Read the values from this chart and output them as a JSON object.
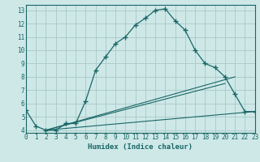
{
  "xlabel": "Humidex (Indice chaleur)",
  "background_color": "#cee8e8",
  "grid_color": "#aecccc",
  "line_color": "#1a6666",
  "xlim": [
    0,
    23
  ],
  "ylim": [
    3.8,
    13.4
  ],
  "xticks": [
    0,
    1,
    2,
    3,
    4,
    5,
    6,
    7,
    8,
    9,
    10,
    11,
    12,
    13,
    14,
    15,
    16,
    17,
    18,
    19,
    20,
    21,
    22,
    23
  ],
  "yticks": [
    4,
    5,
    6,
    7,
    8,
    9,
    10,
    11,
    12,
    13
  ],
  "series1_x": [
    0,
    1,
    2,
    3,
    4,
    5,
    6,
    7,
    8,
    9,
    10,
    11,
    12,
    13,
    14,
    15,
    16,
    17,
    18,
    19,
    20,
    21,
    22,
    23
  ],
  "series1_y": [
    5.5,
    4.3,
    4.0,
    4.0,
    4.5,
    4.5,
    6.2,
    8.5,
    9.5,
    10.5,
    11.0,
    11.9,
    12.4,
    13.0,
    13.1,
    12.2,
    11.5,
    10.0,
    9.0,
    8.7,
    8.0,
    6.7,
    5.4,
    5.4
  ],
  "series2_x": [
    2,
    23
  ],
  "series2_y": [
    4.0,
    5.4
  ],
  "series3_x": [
    2,
    20
  ],
  "series3_y": [
    4.0,
    7.5
  ],
  "series4_x": [
    2,
    21
  ],
  "series4_y": [
    4.0,
    8.0
  ]
}
